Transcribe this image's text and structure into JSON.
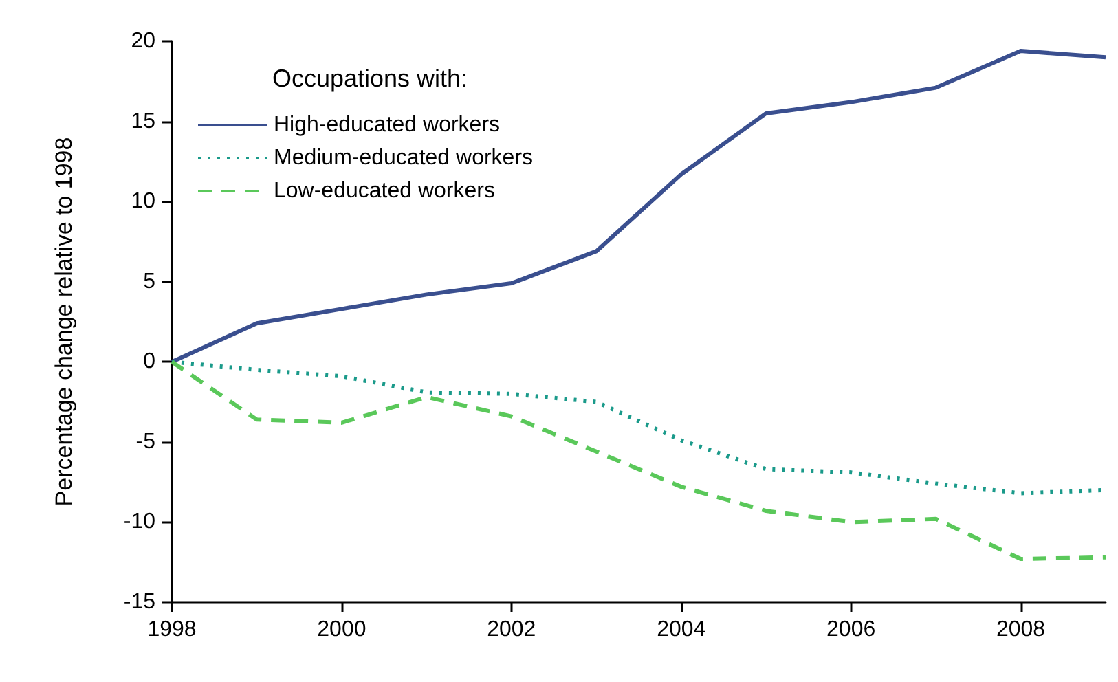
{
  "chart_data": {
    "type": "line",
    "ylabel": "Percentage change relative to 1998",
    "legend_title": "Occupations with:",
    "x": [
      1998,
      1999,
      2000,
      2001,
      2002,
      2003,
      2004,
      2005,
      2006,
      2007,
      2008,
      2009
    ],
    "series": [
      {
        "name": "High-educated workers",
        "color": "#3a4f8f",
        "line_style": "solid",
        "values": [
          0,
          2.4,
          3.3,
          4.2,
          4.9,
          6.9,
          11.7,
          15.5,
          16.2,
          17.1,
          19.4,
          19.0
        ]
      },
      {
        "name": "Medium-educated workers",
        "color": "#1a9a8a",
        "line_style": "dotted",
        "values": [
          0,
          -0.5,
          -0.9,
          -1.9,
          -2.0,
          -2.5,
          -4.9,
          -6.7,
          -6.9,
          -7.6,
          -8.2,
          -8.0
        ]
      },
      {
        "name": "Low-educated workers",
        "color": "#5ac85a",
        "line_style": "dashed",
        "values": [
          0,
          -3.6,
          -3.8,
          -2.2,
          -3.4,
          -5.6,
          -7.8,
          -9.3,
          -10.0,
          -9.8,
          -12.3,
          -12.2
        ]
      }
    ],
    "xlim": [
      1998,
      2009
    ],
    "xticks": [
      1998,
      2000,
      2002,
      2004,
      2006,
      2008
    ],
    "ylim": [
      -15,
      20
    ],
    "yticks": [
      -15,
      -10,
      -5,
      0,
      5,
      10,
      15,
      20
    ],
    "grid": false,
    "legend": "top left",
    "marker": "none"
  }
}
